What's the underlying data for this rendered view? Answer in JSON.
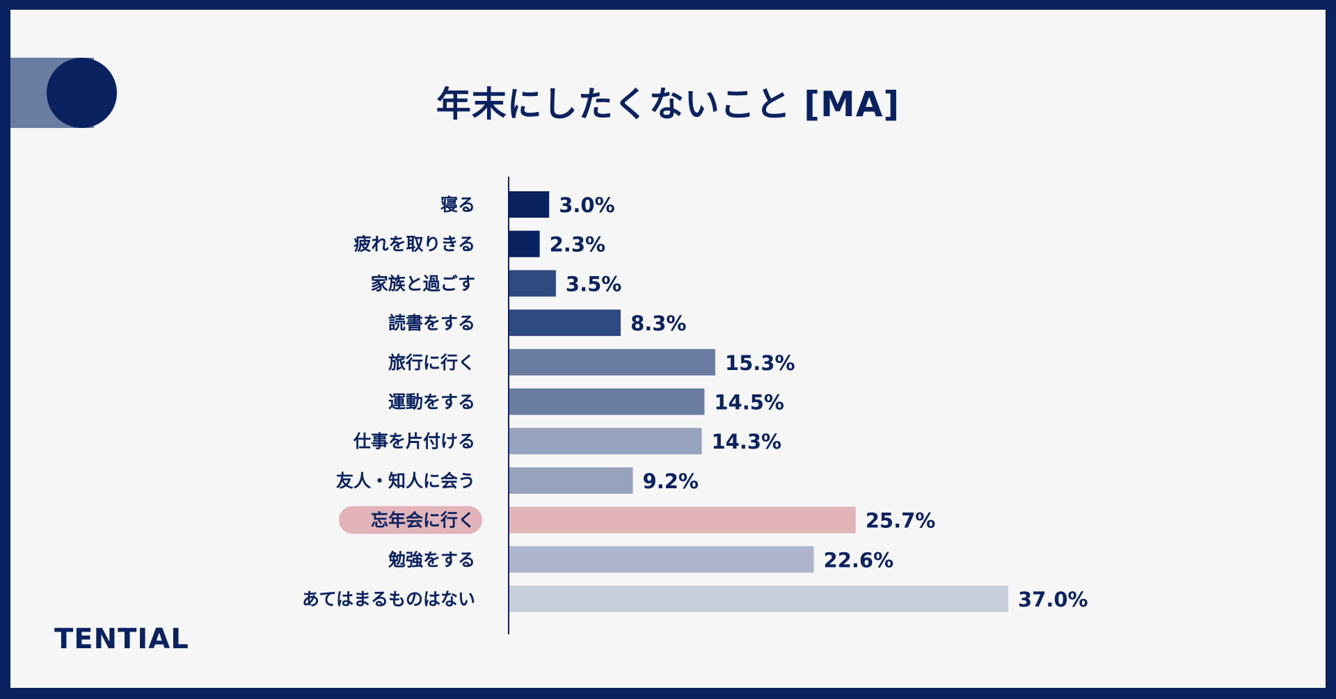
{
  "chart_data": {
    "type": "bar",
    "orientation": "horizontal",
    "title": "年末にしたくないこと [MA]",
    "categories": [
      "寝る",
      "疲れを取りきる",
      "家族と過ごす",
      "読書をする",
      "旅行に行く",
      "運動をする",
      "仕事を片付ける",
      "友人・知人に会う",
      "忘年会に行く",
      "勉強をする",
      "あてはまるものはない"
    ],
    "values": [
      3.0,
      2.3,
      3.5,
      8.3,
      15.3,
      14.5,
      14.3,
      9.2,
      25.7,
      22.6,
      37.0
    ],
    "value_labels": [
      "3.0%",
      "2.3%",
      "3.5%",
      "8.3%",
      "15.3%",
      "14.5%",
      "14.3%",
      "9.2%",
      "25.7%",
      "22.6%",
      "37.0%"
    ],
    "unit": "%",
    "highlight_category": "忘年会に行く",
    "bar_colors": [
      "#0b2260",
      "#0b2260",
      "#2f4a80",
      "#2f4a80",
      "#6a7ca0",
      "#6a7ca0",
      "#97a3be",
      "#97a3be",
      "#e0b4b8",
      "#acb5cc",
      "#c8cedc"
    ],
    "highlight_color": "#e0b4b8",
    "xlabel": "",
    "ylabel": "",
    "xlim": [
      0,
      37
    ]
  },
  "brand": "TENTIAL"
}
